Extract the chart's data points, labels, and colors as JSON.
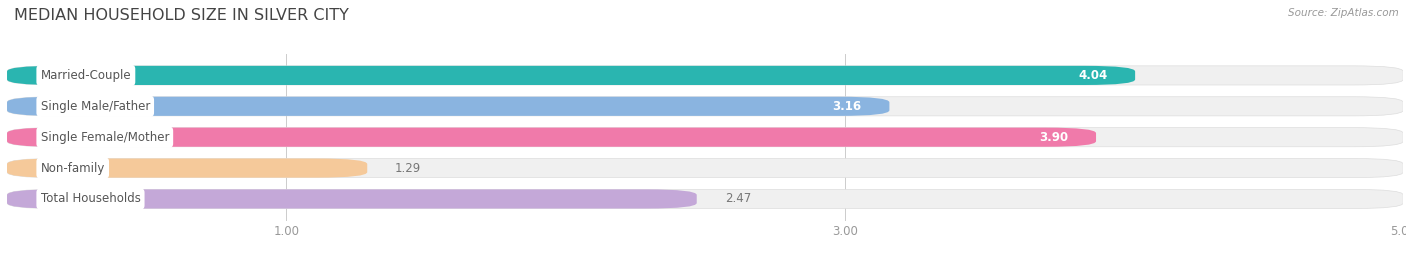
{
  "title": "MEDIAN HOUSEHOLD SIZE IN SILVER CITY",
  "source": "Source: ZipAtlas.com",
  "categories": [
    "Married-Couple",
    "Single Male/Father",
    "Single Female/Mother",
    "Non-family",
    "Total Households"
  ],
  "values": [
    4.04,
    3.16,
    3.9,
    1.29,
    2.47
  ],
  "bar_colors": [
    "#2ab5b0",
    "#8ab4e0",
    "#f07aaa",
    "#f5c99a",
    "#c4a8d8"
  ],
  "bar_bg_color": "#efefef",
  "row_bg_color": "#f0f0f0",
  "xlim_min": 0.0,
  "xlim_max": 5.0,
  "xticks": [
    1.0,
    3.0,
    5.0
  ],
  "label_color": "#555555",
  "value_color_inside": "#ffffff",
  "value_color_outside": "#777777",
  "background_color": "#ffffff",
  "title_fontsize": 11.5,
  "label_fontsize": 8.5,
  "value_fontsize": 8.5,
  "source_fontsize": 7.5,
  "bar_height": 0.62,
  "value_threshold": 2.5
}
